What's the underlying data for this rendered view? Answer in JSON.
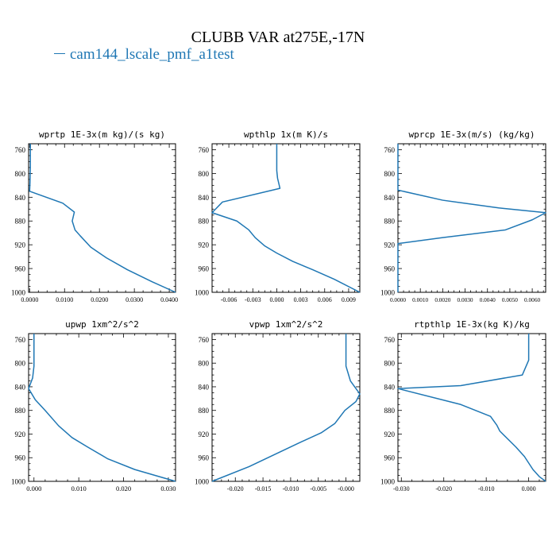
{
  "title": "CLUBB VAR at275E,-17N",
  "legend": {
    "label": "cam144_lscale_pmf_a1test",
    "color": "#1f77b4"
  },
  "chart_data": [
    {
      "type": "line",
      "title": "wprtp  1E-3x(m kg)/(s kg)",
      "xlim": [
        -0.0003,
        0.0418
      ],
      "ylim": [
        1000,
        750
      ],
      "xticks": [
        0.0,
        0.01,
        0.02,
        0.03,
        0.04
      ],
      "xticklabels": [
        "0.0000",
        "0.0100",
        "0.0200",
        "0.0300",
        "0.0400"
      ],
      "yticks": [
        760,
        800,
        840,
        880,
        920,
        960,
        1000
      ],
      "series": [
        {
          "values": [
            {
              "x": 0.0002,
              "y": 750
            },
            {
              "x": 0.0002,
              "y": 790
            },
            {
              "x": 0.0001,
              "y": 815
            },
            {
              "x": 0.0,
              "y": 830
            },
            {
              "x": 0.0095,
              "y": 850
            },
            {
              "x": 0.0128,
              "y": 865
            },
            {
              "x": 0.0122,
              "y": 880
            },
            {
              "x": 0.013,
              "y": 895
            },
            {
              "x": 0.0145,
              "y": 905
            },
            {
              "x": 0.0175,
              "y": 924
            },
            {
              "x": 0.022,
              "y": 942
            },
            {
              "x": 0.028,
              "y": 962
            },
            {
              "x": 0.035,
              "y": 982
            },
            {
              "x": 0.0418,
              "y": 1000
            }
          ]
        }
      ]
    },
    {
      "type": "line",
      "title": "wpthlp  1x(m K)/s",
      "xlim": [
        -0.0081,
        0.0104
      ],
      "ylim": [
        1000,
        750
      ],
      "xticks": [
        -0.006,
        -0.003,
        0.0,
        0.003,
        0.006,
        0.009
      ],
      "xticklabels": [
        "-0.006",
        "-0.003",
        "0.000",
        "0.003",
        "0.006",
        "0.009"
      ],
      "yticks": [
        760,
        800,
        840,
        880,
        920,
        960,
        1000
      ],
      "series": [
        {
          "values": [
            {
              "x": 0.0,
              "y": 750
            },
            {
              "x": 0.0,
              "y": 795
            },
            {
              "x": 0.0001,
              "y": 808
            },
            {
              "x": 0.0004,
              "y": 825
            },
            {
              "x": -0.0068,
              "y": 848
            },
            {
              "x": -0.0081,
              "y": 866
            },
            {
              "x": -0.005,
              "y": 880
            },
            {
              "x": -0.0035,
              "y": 895
            },
            {
              "x": -0.0027,
              "y": 908
            },
            {
              "x": -0.0015,
              "y": 922
            },
            {
              "x": 0.0,
              "y": 934
            },
            {
              "x": 0.002,
              "y": 948
            },
            {
              "x": 0.0045,
              "y": 962
            },
            {
              "x": 0.0072,
              "y": 978
            },
            {
              "x": 0.0104,
              "y": 1000
            }
          ]
        }
      ]
    },
    {
      "type": "line",
      "title": "wprcp  1E-3x(m/s) (kg/kg)",
      "xlim": [
        0.0,
        0.0066
      ],
      "ylim": [
        1000,
        750
      ],
      "xticks": [
        0.0,
        0.001,
        0.002,
        0.003,
        0.004,
        0.005,
        0.006
      ],
      "xticklabels": [
        "0.0000",
        "0.0010",
        "0.0020",
        "0.0030",
        "0.0040",
        "0.0050",
        "0.0060"
      ],
      "yticks": [
        760,
        800,
        840,
        880,
        920,
        960,
        1000
      ],
      "series": [
        {
          "values": [
            {
              "x": 0.0,
              "y": 750
            },
            {
              "x": 0.0,
              "y": 828
            },
            {
              "x": 0.002,
              "y": 845
            },
            {
              "x": 0.0045,
              "y": 858
            },
            {
              "x": 0.0066,
              "y": 866
            },
            {
              "x": 0.006,
              "y": 878
            },
            {
              "x": 0.0048,
              "y": 895
            },
            {
              "x": 0.002,
              "y": 908
            },
            {
              "x": 0.0,
              "y": 918
            },
            {
              "x": 0.0,
              "y": 1000
            }
          ]
        }
      ]
    },
    {
      "type": "line",
      "title": "upwp  1xm^2/s^2",
      "xlim": [
        -0.0012,
        0.0316
      ],
      "ylim": [
        1000,
        750
      ],
      "xticks": [
        0.0,
        0.01,
        0.02,
        0.03
      ],
      "xticklabels": [
        "0.000",
        "0.010",
        "0.020",
        "0.030"
      ],
      "yticks": [
        760,
        800,
        840,
        880,
        920,
        960,
        1000
      ],
      "series": [
        {
          "values": [
            {
              "x": 0.0,
              "y": 750
            },
            {
              "x": 0.0,
              "y": 805
            },
            {
              "x": -0.0003,
              "y": 825
            },
            {
              "x": -0.0012,
              "y": 843
            },
            {
              "x": 0.0003,
              "y": 862
            },
            {
              "x": 0.0025,
              "y": 880
            },
            {
              "x": 0.0055,
              "y": 906
            },
            {
              "x": 0.0085,
              "y": 926
            },
            {
              "x": 0.012,
              "y": 942
            },
            {
              "x": 0.0165,
              "y": 962
            },
            {
              "x": 0.0225,
              "y": 980
            },
            {
              "x": 0.0316,
              "y": 1000
            }
          ]
        }
      ]
    },
    {
      "type": "line",
      "title": "vpwp  1xm^2/s^2",
      "xlim": [
        -0.0242,
        0.0025
      ],
      "ylim": [
        1000,
        750
      ],
      "xticks": [
        -0.02,
        -0.015,
        -0.01,
        -0.005,
        0.0
      ],
      "xticklabels": [
        "-0.020",
        "-0.015",
        "-0.010",
        "-0.005",
        "-0.000"
      ],
      "yticks": [
        760,
        800,
        840,
        880,
        920,
        960,
        1000
      ],
      "series": [
        {
          "values": [
            {
              "x": 0.0,
              "y": 750
            },
            {
              "x": 0.0,
              "y": 805
            },
            {
              "x": 0.0008,
              "y": 830
            },
            {
              "x": 0.0025,
              "y": 852
            },
            {
              "x": 0.0018,
              "y": 865
            },
            {
              "x": -0.0002,
              "y": 880
            },
            {
              "x": -0.002,
              "y": 902
            },
            {
              "x": -0.0045,
              "y": 918
            },
            {
              "x": -0.0085,
              "y": 935
            },
            {
              "x": -0.013,
              "y": 955
            },
            {
              "x": -0.0175,
              "y": 975
            },
            {
              "x": -0.0242,
              "y": 1000
            }
          ]
        }
      ]
    },
    {
      "type": "line",
      "title": "rtpthlp  1E-3x(kg K)/kg",
      "xlim": [
        -0.0308,
        0.004
      ],
      "ylim": [
        1000,
        750
      ],
      "xticks": [
        -0.03,
        -0.02,
        -0.01,
        0.0
      ],
      "xticklabels": [
        "-0.030",
        "-0.020",
        "-0.010",
        "0.000"
      ],
      "yticks": [
        760,
        800,
        840,
        880,
        920,
        960,
        1000
      ],
      "series": [
        {
          "values": [
            {
              "x": 0.0,
              "y": 750
            },
            {
              "x": 0.0,
              "y": 795
            },
            {
              "x": -0.0015,
              "y": 820
            },
            {
              "x": -0.016,
              "y": 838
            },
            {
              "x": -0.0308,
              "y": 843
            },
            {
              "x": -0.016,
              "y": 870
            },
            {
              "x": -0.009,
              "y": 890
            },
            {
              "x": -0.0075,
              "y": 905
            },
            {
              "x": -0.0068,
              "y": 915
            },
            {
              "x": -0.003,
              "y": 942
            },
            {
              "x": -0.001,
              "y": 958
            },
            {
              "x": 0.001,
              "y": 980
            },
            {
              "x": 0.0025,
              "y": 992
            },
            {
              "x": 0.004,
              "y": 1000
            }
          ]
        }
      ]
    }
  ]
}
